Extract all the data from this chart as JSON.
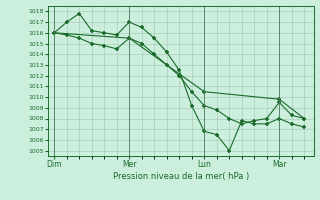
{
  "background_color": "#cceedd",
  "grid_color": "#aaccbb",
  "line_color": "#1a6b2a",
  "xlabel": "Pression niveau de la mer( hPa )",
  "ylim": [
    1004.5,
    1018.5
  ],
  "yticks": [
    1005,
    1006,
    1007,
    1008,
    1009,
    1010,
    1011,
    1012,
    1013,
    1014,
    1015,
    1016,
    1017,
    1018
  ],
  "xtick_labels": [
    "Dim",
    "Mer",
    "Lun",
    "Mar"
  ],
  "xtick_positions": [
    0,
    48,
    96,
    144
  ],
  "vline_positions": [
    0,
    48,
    96,
    144
  ],
  "series1_x": [
    0,
    8,
    16,
    24,
    32,
    40,
    48,
    56,
    64,
    72,
    80,
    88,
    96,
    104,
    112,
    120,
    128,
    136,
    144,
    152,
    160
  ],
  "series1_y": [
    1016.0,
    1017.0,
    1017.8,
    1016.2,
    1016.0,
    1015.8,
    1017.0,
    1016.5,
    1015.5,
    1014.2,
    1012.5,
    1009.2,
    1006.8,
    1006.5,
    1005.0,
    1007.8,
    1007.5,
    1007.5,
    1008.0,
    1007.5,
    1007.2
  ],
  "series2_x": [
    0,
    48,
    96,
    144,
    160
  ],
  "series2_y": [
    1016.0,
    1015.5,
    1010.5,
    1009.8,
    1008.0
  ],
  "series3_x": [
    0,
    8,
    16,
    24,
    32,
    40,
    48,
    56,
    64,
    72,
    80,
    88,
    96,
    104,
    112,
    120,
    128,
    136,
    144,
    152,
    160
  ],
  "series3_y": [
    1016.0,
    1015.8,
    1015.5,
    1015.0,
    1014.8,
    1014.5,
    1015.5,
    1015.0,
    1014.0,
    1013.0,
    1012.0,
    1010.5,
    1009.2,
    1008.8,
    1008.0,
    1007.5,
    1007.8,
    1008.0,
    1009.5,
    1008.3,
    1008.0
  ]
}
